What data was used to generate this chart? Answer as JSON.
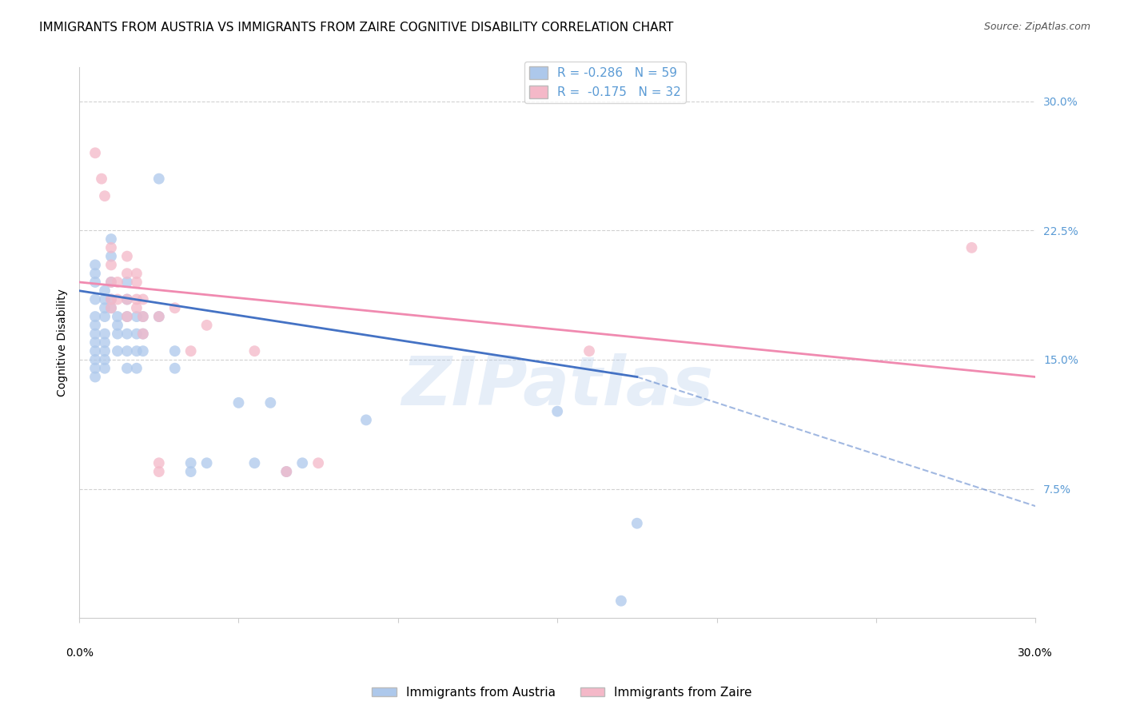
{
  "title": "IMMIGRANTS FROM AUSTRIA VS IMMIGRANTS FROM ZAIRE COGNITIVE DISABILITY CORRELATION CHART",
  "source": "Source: ZipAtlas.com",
  "ylabel": "Cognitive Disability",
  "ytick_labels": [
    "7.5%",
    "15.0%",
    "22.5%",
    "30.0%"
  ],
  "ytick_values": [
    0.075,
    0.15,
    0.225,
    0.3
  ],
  "xlim": [
    0.0,
    0.3
  ],
  "ylim": [
    0.0,
    0.32
  ],
  "legend_entries": [
    {
      "label": "R = -0.286   N = 59",
      "color": "#adc8eb"
    },
    {
      "label": "R =  -0.175   N = 32",
      "color": "#f4b8c8"
    }
  ],
  "austria_color": "#adc8eb",
  "zaire_color": "#f4b8c8",
  "austria_line_color": "#4472c4",
  "zaire_line_color": "#f08ab0",
  "background_color": "#ffffff",
  "grid_color": "#cccccc",
  "austria_scatter": [
    [
      0.005,
      0.205
    ],
    [
      0.005,
      0.2
    ],
    [
      0.005,
      0.195
    ],
    [
      0.005,
      0.185
    ],
    [
      0.005,
      0.175
    ],
    [
      0.005,
      0.17
    ],
    [
      0.005,
      0.165
    ],
    [
      0.005,
      0.16
    ],
    [
      0.005,
      0.155
    ],
    [
      0.005,
      0.15
    ],
    [
      0.005,
      0.145
    ],
    [
      0.005,
      0.14
    ],
    [
      0.008,
      0.19
    ],
    [
      0.008,
      0.185
    ],
    [
      0.008,
      0.18
    ],
    [
      0.008,
      0.175
    ],
    [
      0.008,
      0.165
    ],
    [
      0.008,
      0.16
    ],
    [
      0.008,
      0.155
    ],
    [
      0.008,
      0.15
    ],
    [
      0.008,
      0.145
    ],
    [
      0.01,
      0.22
    ],
    [
      0.01,
      0.21
    ],
    [
      0.01,
      0.195
    ],
    [
      0.01,
      0.185
    ],
    [
      0.01,
      0.18
    ],
    [
      0.012,
      0.175
    ],
    [
      0.012,
      0.17
    ],
    [
      0.012,
      0.165
    ],
    [
      0.012,
      0.155
    ],
    [
      0.015,
      0.195
    ],
    [
      0.015,
      0.185
    ],
    [
      0.015,
      0.175
    ],
    [
      0.015,
      0.165
    ],
    [
      0.015,
      0.155
    ],
    [
      0.015,
      0.145
    ],
    [
      0.018,
      0.175
    ],
    [
      0.018,
      0.165
    ],
    [
      0.018,
      0.155
    ],
    [
      0.018,
      0.145
    ],
    [
      0.02,
      0.175
    ],
    [
      0.02,
      0.165
    ],
    [
      0.02,
      0.155
    ],
    [
      0.025,
      0.255
    ],
    [
      0.025,
      0.175
    ],
    [
      0.03,
      0.155
    ],
    [
      0.03,
      0.145
    ],
    [
      0.035,
      0.09
    ],
    [
      0.035,
      0.085
    ],
    [
      0.04,
      0.09
    ],
    [
      0.05,
      0.125
    ],
    [
      0.055,
      0.09
    ],
    [
      0.06,
      0.125
    ],
    [
      0.065,
      0.085
    ],
    [
      0.07,
      0.09
    ],
    [
      0.09,
      0.115
    ],
    [
      0.15,
      0.12
    ],
    [
      0.17,
      0.01
    ],
    [
      0.175,
      0.055
    ]
  ],
  "zaire_scatter": [
    [
      0.005,
      0.27
    ],
    [
      0.007,
      0.255
    ],
    [
      0.008,
      0.245
    ],
    [
      0.01,
      0.215
    ],
    [
      0.01,
      0.205
    ],
    [
      0.01,
      0.195
    ],
    [
      0.01,
      0.185
    ],
    [
      0.01,
      0.18
    ],
    [
      0.012,
      0.195
    ],
    [
      0.012,
      0.185
    ],
    [
      0.015,
      0.21
    ],
    [
      0.015,
      0.2
    ],
    [
      0.015,
      0.185
    ],
    [
      0.015,
      0.175
    ],
    [
      0.018,
      0.2
    ],
    [
      0.018,
      0.195
    ],
    [
      0.018,
      0.185
    ],
    [
      0.018,
      0.18
    ],
    [
      0.02,
      0.185
    ],
    [
      0.02,
      0.175
    ],
    [
      0.02,
      0.165
    ],
    [
      0.025,
      0.175
    ],
    [
      0.025,
      0.085
    ],
    [
      0.025,
      0.09
    ],
    [
      0.03,
      0.18
    ],
    [
      0.035,
      0.155
    ],
    [
      0.04,
      0.17
    ],
    [
      0.055,
      0.155
    ],
    [
      0.065,
      0.085
    ],
    [
      0.075,
      0.09
    ],
    [
      0.16,
      0.155
    ],
    [
      0.28,
      0.215
    ]
  ],
  "austria_trend": {
    "x_start": 0.0,
    "y_start": 0.19,
    "x_end": 0.175,
    "y_end": 0.14
  },
  "austria_trend_ext": {
    "x_start": 0.175,
    "y_start": 0.14,
    "x_end": 0.3,
    "y_end": 0.065
  },
  "zaire_trend": {
    "x_start": 0.0,
    "y_start": 0.195,
    "x_end": 0.3,
    "y_end": 0.14
  },
  "watermark": "ZIPatlas",
  "title_fontsize": 11,
  "axis_label_fontsize": 10,
  "tick_fontsize": 10,
  "source_fontsize": 9
}
